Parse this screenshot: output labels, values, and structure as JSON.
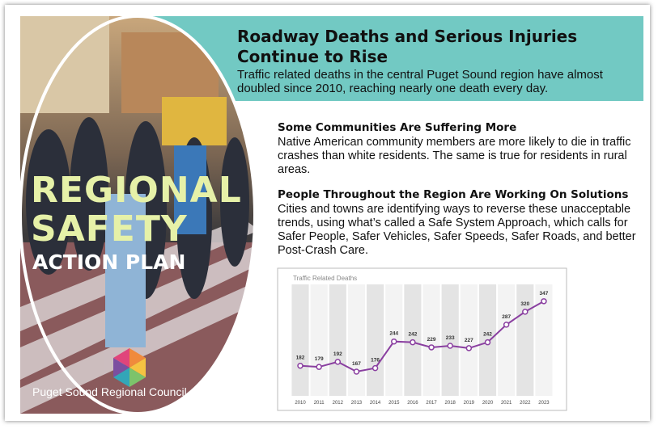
{
  "banner": {
    "title_lines": [
      "Roadway Deaths and Serious Injuries",
      "Continue to Rise"
    ],
    "subtitle": "Traffic related deaths in the central Puget Sound region have almost doubled since 2010, reaching nearly one death every day."
  },
  "plan": {
    "lines": [
      "REGIONAL",
      "SAFETY",
      "ACTION PLAN"
    ],
    "organization": "Puget Sound Regional Council"
  },
  "sections": [
    {
      "heading": "Some Communities Are Suffering More",
      "body": "Native American community members are more likely to die in traffic crashes than white residents. The same is true for residents in rural areas."
    },
    {
      "heading": "People Throughout the Region Are Working On Solutions",
      "body": "Cities and towns are identifying ways to reverse these unacceptable trends, using what’s called a Safe System Approach, which calls for Safer People, Safer Vehicles, Safer Speeds, Safer Roads, and better Post-Crash Care."
    }
  ],
  "chart": {
    "type": "line",
    "title": "Traffic Related Deaths",
    "categories": [
      "2010",
      "2011",
      "2012",
      "2013",
      "2014",
      "2015",
      "2016",
      "2017",
      "2018",
      "2019",
      "2020",
      "2021",
      "2022",
      "2023"
    ],
    "values": [
      182,
      179,
      192,
      167,
      176,
      244,
      242,
      229,
      233,
      227,
      242,
      287,
      320,
      347
    ],
    "color": "#8a3fa0",
    "ylim": [
      105,
      390
    ]
  }
}
